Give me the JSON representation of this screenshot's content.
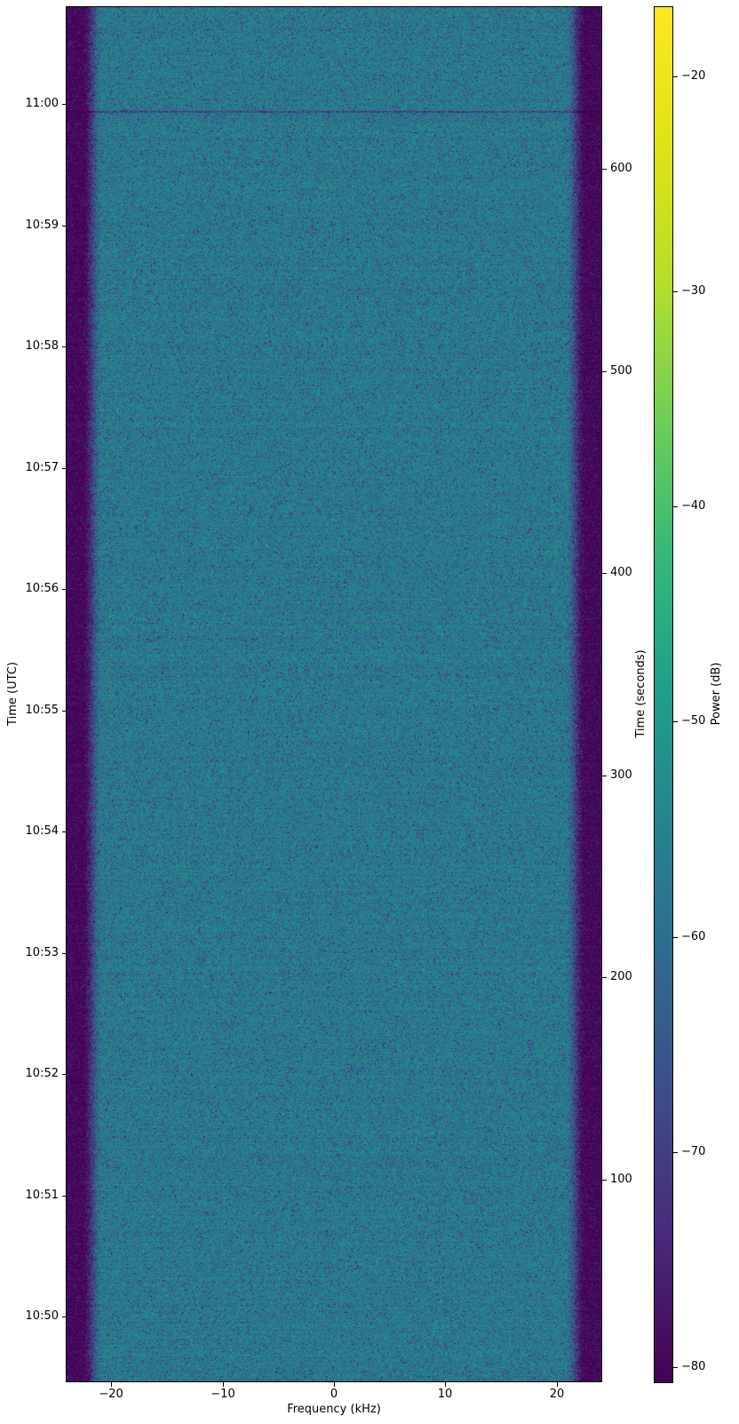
{
  "chart_data": {
    "type": "heatmap",
    "subtype": "radio-spectrogram-waterfall",
    "title": "",
    "xlabel": "Frequency (kHz)",
    "left_axis_label": "Time (UTC)",
    "right_axis_label": "Time (seconds)",
    "colorbar_label": "Power (dB)",
    "colormap": "viridis",
    "legend": "none",
    "grid": false,
    "xlim_khz": [
      -24,
      24
    ],
    "x_ticks": [
      {
        "value": -20,
        "label": "−20"
      },
      {
        "value": -10,
        "label": "−10"
      },
      {
        "value": 0,
        "label": "0"
      },
      {
        "value": 10,
        "label": "10"
      },
      {
        "value": 20,
        "label": "20"
      }
    ],
    "time_extent_seconds": [
      0,
      680
    ],
    "right_ticks_seconds": [
      {
        "value": 600,
        "label": "600"
      },
      {
        "value": 500,
        "label": "500"
      },
      {
        "value": 400,
        "label": "400"
      },
      {
        "value": 300,
        "label": "300"
      },
      {
        "value": 200,
        "label": "200"
      },
      {
        "value": 100,
        "label": "100"
      }
    ],
    "utc_ticks": [
      {
        "label": "11:00",
        "seconds": 632
      },
      {
        "label": "10:59",
        "seconds": 572
      },
      {
        "label": "10:58",
        "seconds": 512
      },
      {
        "label": "10:57",
        "seconds": 452
      },
      {
        "label": "10:56",
        "seconds": 392
      },
      {
        "label": "10:55",
        "seconds": 332
      },
      {
        "label": "10:54",
        "seconds": 272
      },
      {
        "label": "10:53",
        "seconds": 212
      },
      {
        "label": "10:52",
        "seconds": 152
      },
      {
        "label": "10:51",
        "seconds": 92
      },
      {
        "label": "10:50",
        "seconds": 32
      }
    ],
    "power_range_db": [
      -80.7,
      -16.8
    ],
    "colorbar_ticks": [
      {
        "value": -20,
        "label": "−20"
      },
      {
        "value": -30,
        "label": "−30"
      },
      {
        "value": -40,
        "label": "−40"
      },
      {
        "value": -50,
        "label": "−50"
      },
      {
        "value": -60,
        "label": "−60"
      },
      {
        "value": -70,
        "label": "−70"
      },
      {
        "value": -80,
        "label": "−80"
      }
    ],
    "signal_model": {
      "passband_mean_db": -58,
      "passband_halfwidth_khz": 20.8,
      "edge_transition_khz": 1.8,
      "stopband_attenuation_db": 24,
      "noise_texture": "exponential-speckle",
      "row_banding_db": 0.7,
      "dropout_line": {
        "seconds": 628.2,
        "depth_db": 12
      }
    },
    "viridis_stops": [
      [
        0.0,
        "#440154"
      ],
      [
        0.1,
        "#482878"
      ],
      [
        0.2,
        "#3e4a89"
      ],
      [
        0.3,
        "#31688e"
      ],
      [
        0.4,
        "#26828e"
      ],
      [
        0.5,
        "#1f9e89"
      ],
      [
        0.6,
        "#35b779"
      ],
      [
        0.7,
        "#6ece58"
      ],
      [
        0.8,
        "#b5de2b"
      ],
      [
        0.9,
        "#dfe318"
      ],
      [
        1.0,
        "#fde725"
      ]
    ]
  },
  "colors": {
    "background": "#ffffff",
    "axis": "#000000",
    "text": "#000000"
  }
}
